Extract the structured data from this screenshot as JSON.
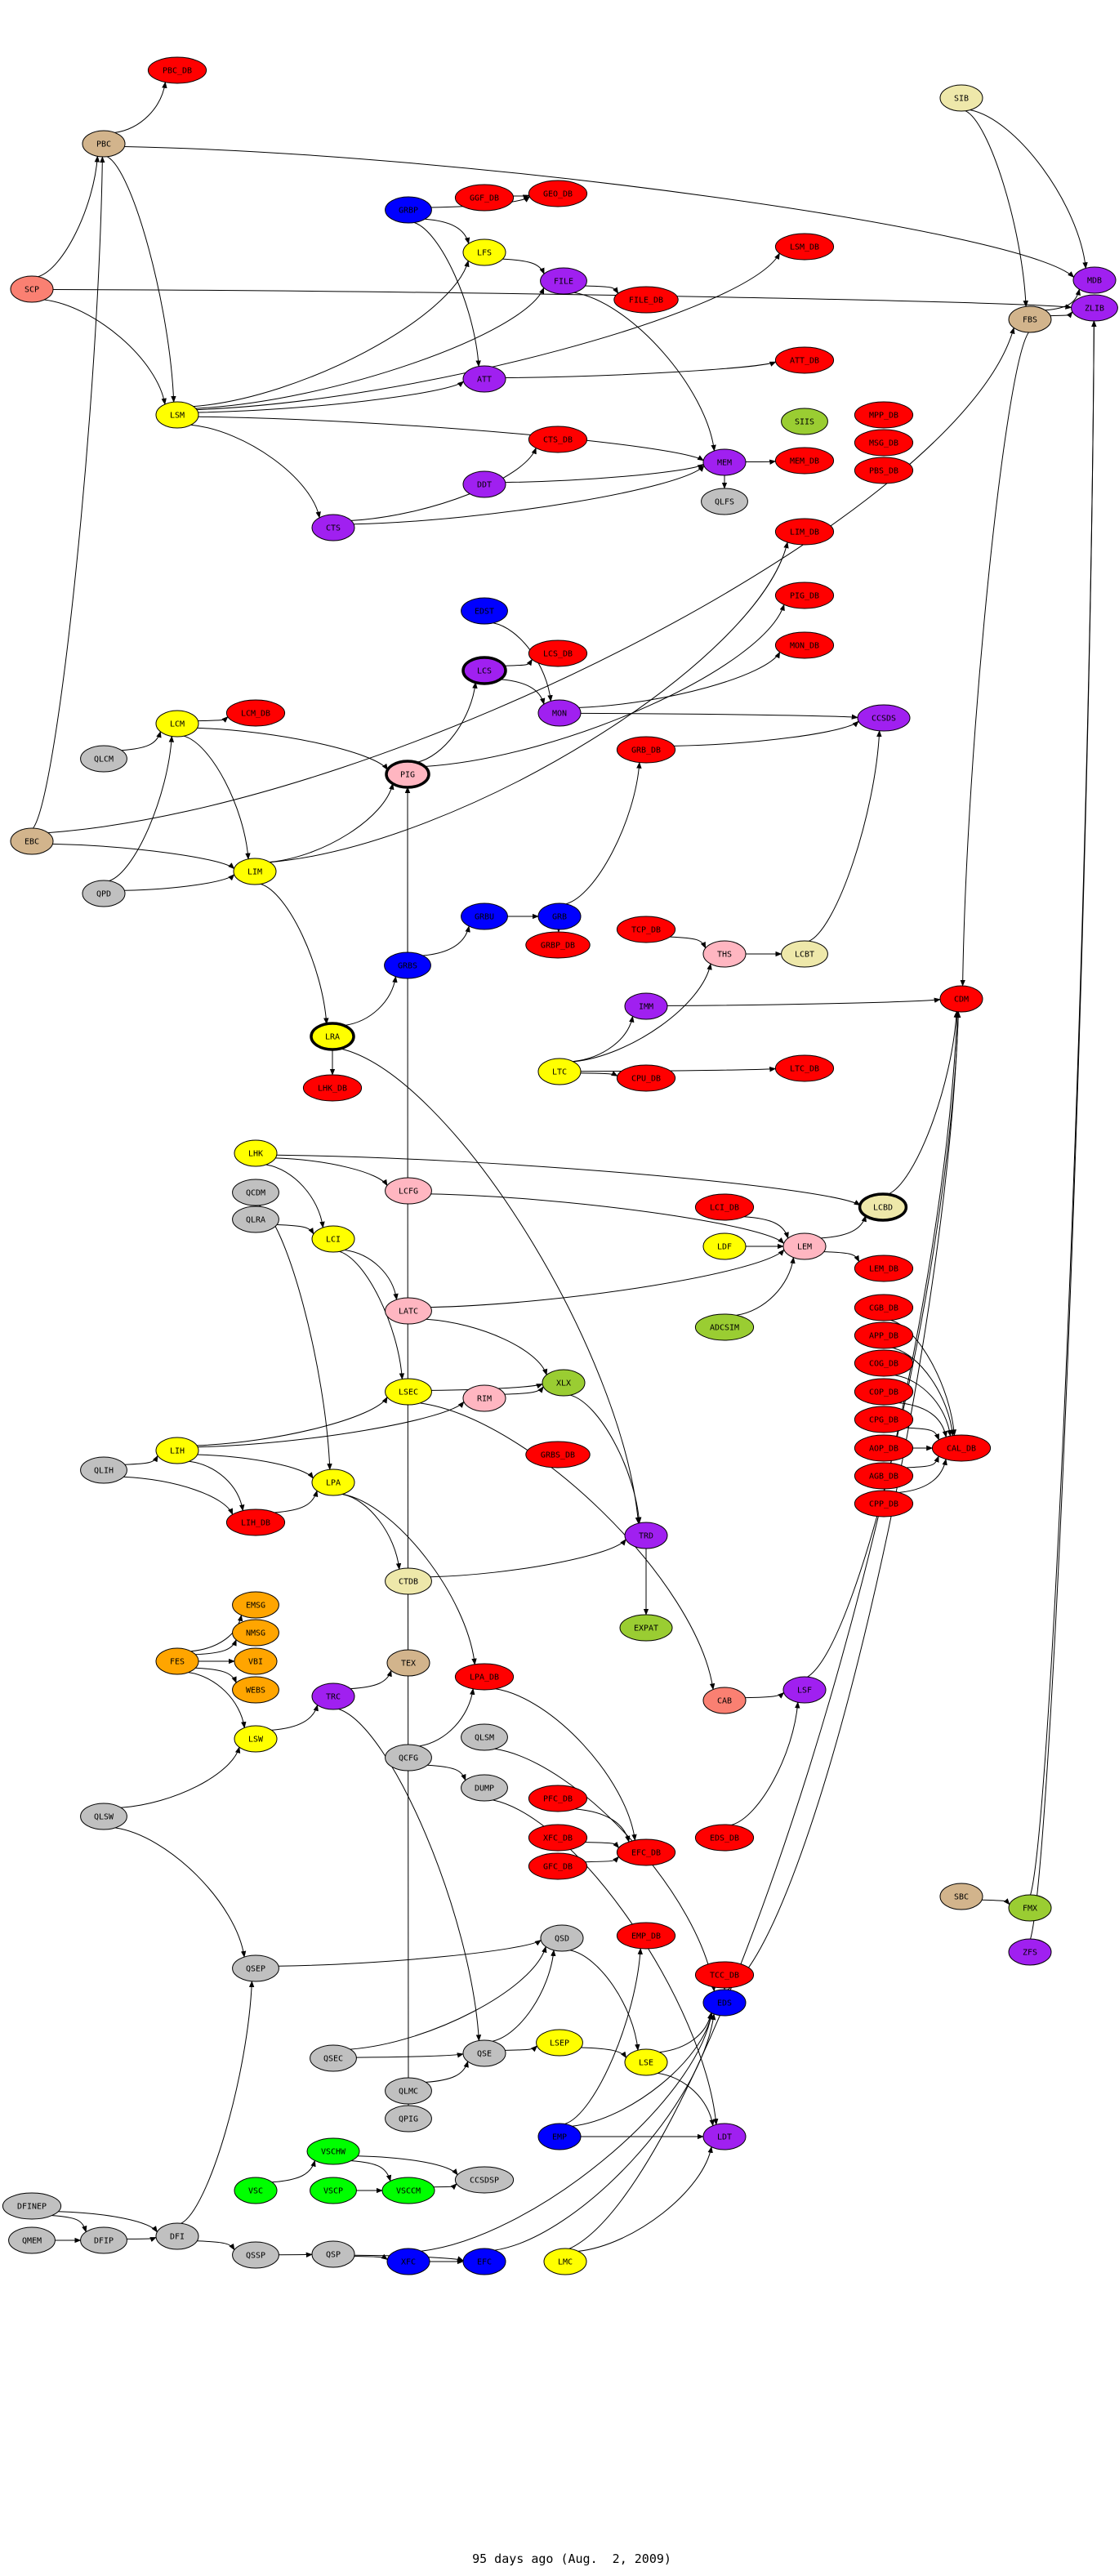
{
  "colors": {
    "red": "#ff0000",
    "yellow": "#ffff00",
    "purple": "#a020f0",
    "blue": "#0000ff",
    "gray": "#c0c0c0",
    "tan": "#d2b48c",
    "salmon": "#fa8072",
    "pink": "#ffb6c1",
    "goldenrod": "#eee8aa",
    "yellowgreen": "#9acd32",
    "orange": "#ffa500",
    "green": "#00ff00"
  },
  "nodes": [
    {
      "id": "PBC_DB",
      "label": "PBC_DB",
      "color": "red"
    },
    {
      "id": "PBC",
      "label": "PBC",
      "color": "tan"
    },
    {
      "id": "SCP",
      "label": "SCP",
      "color": "salmon"
    },
    {
      "id": "GRBP",
      "label": "GRBP",
      "color": "blue"
    },
    {
      "id": "GGF_DB",
      "label": "GGF_DB",
      "color": "red"
    },
    {
      "id": "GEO_DB",
      "label": "GEO_DB",
      "color": "red"
    },
    {
      "id": "LFS",
      "label": "LFS",
      "color": "yellow"
    },
    {
      "id": "FILE",
      "label": "FILE",
      "color": "purple"
    },
    {
      "id": "LSM",
      "label": "LSM",
      "color": "yellow"
    },
    {
      "id": "ATT",
      "label": "ATT",
      "color": "purple"
    },
    {
      "id": "CTS_DB",
      "label": "CTS_DB",
      "color": "red"
    },
    {
      "id": "DDT",
      "label": "DDT",
      "color": "purple"
    },
    {
      "id": "CTS",
      "label": "CTS",
      "color": "purple"
    },
    {
      "id": "SIB",
      "label": "SIB",
      "color": "goldenrod"
    },
    {
      "id": "LSM_DB",
      "label": "LSM_DB",
      "color": "red"
    },
    {
      "id": "MDB",
      "label": "MDB",
      "color": "purple"
    },
    {
      "id": "ZLIB",
      "label": "ZLIB",
      "color": "purple"
    },
    {
      "id": "FBS",
      "label": "FBS",
      "color": "tan"
    },
    {
      "id": "FILE_DB",
      "label": "FILE_DB",
      "color": "red"
    },
    {
      "id": "ATT_DB",
      "label": "ATT_DB",
      "color": "red"
    },
    {
      "id": "SIIS",
      "label": "SIIS",
      "color": "yellowgreen"
    },
    {
      "id": "MPP_DB",
      "label": "MPP_DB",
      "color": "red"
    },
    {
      "id": "MSG_DB",
      "label": "MSG_DB",
      "color": "red"
    },
    {
      "id": "PBS_DB",
      "label": "PBS_DB",
      "color": "red"
    },
    {
      "id": "MEM",
      "label": "MEM",
      "color": "purple"
    },
    {
      "id": "MEM_DB",
      "label": "MEM_DB",
      "color": "red"
    },
    {
      "id": "QLFS",
      "label": "QLFS",
      "color": "gray"
    },
    {
      "id": "LIM_DB",
      "label": "LIM_DB",
      "color": "red"
    },
    {
      "id": "EDST",
      "label": "EDST",
      "color": "blue"
    },
    {
      "id": "LCS",
      "label": "LCS",
      "color": "purple",
      "bold": true
    },
    {
      "id": "LCS_DB",
      "label": "LCS_DB",
      "color": "red"
    },
    {
      "id": "MON",
      "label": "MON",
      "color": "purple"
    },
    {
      "id": "LCM",
      "label": "LCM",
      "color": "yellow"
    },
    {
      "id": "LCM_DB",
      "label": "LCM_DB",
      "color": "red"
    },
    {
      "id": "QLCM",
      "label": "QLCM",
      "color": "gray"
    },
    {
      "id": "PIG",
      "label": "PIG",
      "color": "pink",
      "bold": true
    },
    {
      "id": "EBC",
      "label": "EBC",
      "color": "tan"
    },
    {
      "id": "LIM",
      "label": "LIM",
      "color": "yellow"
    },
    {
      "id": "QPD",
      "label": "QPD",
      "color": "gray"
    },
    {
      "id": "GRBU",
      "label": "GRBU",
      "color": "blue"
    },
    {
      "id": "GRB",
      "label": "GRB",
      "color": "blue"
    },
    {
      "id": "GRBP_DB",
      "label": "GRBP_DB",
      "color": "red"
    },
    {
      "id": "GRBS",
      "label": "GRBS",
      "color": "blue"
    },
    {
      "id": "LRA",
      "label": "LRA",
      "color": "yellow",
      "bold": true
    },
    {
      "id": "LHK_DB",
      "label": "LHK_DB",
      "color": "red"
    },
    {
      "id": "LTC",
      "label": "LTC",
      "color": "yellow"
    },
    {
      "id": "PIG_DB",
      "label": "PIG_DB",
      "color": "red"
    },
    {
      "id": "MON_DB",
      "label": "MON_DB",
      "color": "red"
    },
    {
      "id": "CCSDS",
      "label": "CCSDS",
      "color": "purple"
    },
    {
      "id": "GRB_DB",
      "label": "GRB_DB",
      "color": "red"
    },
    {
      "id": "TCP_DB",
      "label": "TCP_DB",
      "color": "red"
    },
    {
      "id": "THS",
      "label": "THS",
      "color": "pink"
    },
    {
      "id": "LCBT",
      "label": "LCBT",
      "color": "goldenrod"
    },
    {
      "id": "CDM",
      "label": "CDM",
      "color": "red"
    },
    {
      "id": "IMM",
      "label": "IMM",
      "color": "purple"
    },
    {
      "id": "LTC_DB",
      "label": "LTC_DB",
      "color": "red"
    },
    {
      "id": "CPU_DB",
      "label": "CPU_DB",
      "color": "red"
    },
    {
      "id": "LHK",
      "label": "LHK",
      "color": "yellow"
    },
    {
      "id": "QCDM",
      "label": "QCDM",
      "color": "gray"
    },
    {
      "id": "QLRA",
      "label": "QLRA",
      "color": "gray"
    },
    {
      "id": "LCFG",
      "label": "LCFG",
      "color": "pink"
    },
    {
      "id": "LCI",
      "label": "LCI",
      "color": "yellow"
    },
    {
      "id": "LATC",
      "label": "LATC",
      "color": "pink"
    },
    {
      "id": "LSEC",
      "label": "LSEC",
      "color": "yellow"
    },
    {
      "id": "RIM",
      "label": "RIM",
      "color": "pink"
    },
    {
      "id": "XLX",
      "label": "XLX",
      "color": "yellowgreen"
    },
    {
      "id": "LIH",
      "label": "LIH",
      "color": "yellow"
    },
    {
      "id": "QLIH",
      "label": "QLIH",
      "color": "gray"
    },
    {
      "id": "LPA",
      "label": "LPA",
      "color": "yellow"
    },
    {
      "id": "GRBS_DB",
      "label": "GRBS_DB",
      "color": "red"
    },
    {
      "id": "LIH_DB",
      "label": "LIH_DB",
      "color": "red"
    },
    {
      "id": "CTDB",
      "label": "CTDB",
      "color": "goldenrod"
    },
    {
      "id": "EMSG",
      "label": "EMSG",
      "color": "orange"
    },
    {
      "id": "NMSG",
      "label": "NMSG",
      "color": "orange"
    },
    {
      "id": "FES",
      "label": "FES",
      "color": "orange"
    },
    {
      "id": "VBI",
      "label": "VBI",
      "color": "orange"
    },
    {
      "id": "WEBS",
      "label": "WEBS",
      "color": "orange"
    },
    {
      "id": "TEX",
      "label": "TEX",
      "color": "tan"
    },
    {
      "id": "LPA_DB",
      "label": "LPA_DB",
      "color": "red"
    },
    {
      "id": "LCI_DB",
      "label": "LCI_DB",
      "color": "red"
    },
    {
      "id": "LDF",
      "label": "LDF",
      "color": "yellow"
    },
    {
      "id": "LEM",
      "label": "LEM",
      "color": "pink"
    },
    {
      "id": "LCBD",
      "label": "LCBD",
      "color": "goldenrod",
      "bold": true
    },
    {
      "id": "LEM_DB",
      "label": "LEM_DB",
      "color": "red"
    },
    {
      "id": "CGB_DB",
      "label": "CGB_DB",
      "color": "red"
    },
    {
      "id": "APP_DB",
      "label": "APP_DB",
      "color": "red"
    },
    {
      "id": "COG_DB",
      "label": "COG_DB",
      "color": "red"
    },
    {
      "id": "COP_DB",
      "label": "COP_DB",
      "color": "red"
    },
    {
      "id": "CPG_DB",
      "label": "CPG_DB",
      "color": "red"
    },
    {
      "id": "AOP_DB",
      "label": "AOP_DB",
      "color": "red"
    },
    {
      "id": "AGB_DB",
      "label": "AGB_DB",
      "color": "red"
    },
    {
      "id": "CPP_DB",
      "label": "CPP_DB",
      "color": "red"
    },
    {
      "id": "CAL_DB",
      "label": "CAL_DB",
      "color": "red"
    },
    {
      "id": "ADCSIM",
      "label": "ADCSIM",
      "color": "yellowgreen"
    },
    {
      "id": "TRD",
      "label": "TRD",
      "color": "purple"
    },
    {
      "id": "EXPAT",
      "label": "EXPAT",
      "color": "yellowgreen"
    },
    {
      "id": "TRC",
      "label": "TRC",
      "color": "purple"
    },
    {
      "id": "LSW",
      "label": "LSW",
      "color": "yellow"
    },
    {
      "id": "QLSM",
      "label": "QLSM",
      "color": "gray"
    },
    {
      "id": "QCFG",
      "label": "QCFG",
      "color": "gray"
    },
    {
      "id": "DUMP",
      "label": "DUMP",
      "color": "gray"
    },
    {
      "id": "PFC_DB",
      "label": "PFC_DB",
      "color": "red"
    },
    {
      "id": "XFC_DB",
      "label": "XFC_DB",
      "color": "red"
    },
    {
      "id": "GFC_DB",
      "label": "GFC_DB",
      "color": "red"
    },
    {
      "id": "QLSW",
      "label": "QLSW",
      "color": "gray"
    },
    {
      "id": "QSD",
      "label": "QSD",
      "color": "gray"
    },
    {
      "id": "QSEP",
      "label": "QSEP",
      "color": "gray"
    },
    {
      "id": "LSEP",
      "label": "LSEP",
      "color": "yellow"
    },
    {
      "id": "QSE",
      "label": "QSE",
      "color": "gray"
    },
    {
      "id": "QSEC",
      "label": "QSEC",
      "color": "gray"
    },
    {
      "id": "QLMC",
      "label": "QLMC",
      "color": "gray"
    },
    {
      "id": "QPIG",
      "label": "QPIG",
      "color": "gray"
    },
    {
      "id": "EMP",
      "label": "EMP",
      "color": "blue"
    },
    {
      "id": "VSCHW",
      "label": "VSCHW",
      "color": "green"
    },
    {
      "id": "CCSDSP",
      "label": "CCSDSP",
      "color": "gray"
    },
    {
      "id": "VSC",
      "label": "VSC",
      "color": "green"
    },
    {
      "id": "VSCP",
      "label": "VSCP",
      "color": "green"
    },
    {
      "id": "VSCCM",
      "label": "VSCCM",
      "color": "green"
    },
    {
      "id": "DFINEP",
      "label": "DFINEP",
      "color": "gray"
    },
    {
      "id": "LSF",
      "label": "LSF",
      "color": "purple"
    },
    {
      "id": "CAB",
      "label": "CAB",
      "color": "salmon"
    },
    {
      "id": "EFC_DB",
      "label": "EFC_DB",
      "color": "red"
    },
    {
      "id": "EDS_DB",
      "label": "EDS_DB",
      "color": "red"
    },
    {
      "id": "EMP_DB",
      "label": "EMP_DB",
      "color": "red"
    },
    {
      "id": "TCC_DB",
      "label": "TCC_DB",
      "color": "red"
    },
    {
      "id": "EDS",
      "label": "EDS",
      "color": "blue"
    },
    {
      "id": "LSE",
      "label": "LSE",
      "color": "yellow"
    },
    {
      "id": "LDT",
      "label": "LDT",
      "color": "purple"
    },
    {
      "id": "SBC",
      "label": "SBC",
      "color": "tan"
    },
    {
      "id": "FMX",
      "label": "FMX",
      "color": "yellowgreen"
    },
    {
      "id": "ZFS",
      "label": "ZFS",
      "color": "purple"
    },
    {
      "id": "QMEM",
      "label": "QMEM",
      "color": "gray"
    },
    {
      "id": "DFIP",
      "label": "DFIP",
      "color": "gray"
    },
    {
      "id": "DFI",
      "label": "DFI",
      "color": "gray"
    },
    {
      "id": "QSSP",
      "label": "QSSP",
      "color": "gray"
    },
    {
      "id": "QSP",
      "label": "QSP",
      "color": "gray"
    },
    {
      "id": "XFC",
      "label": "XFC",
      "color": "blue"
    },
    {
      "id": "EFC",
      "label": "EFC",
      "color": "blue"
    },
    {
      "id": "LMC",
      "label": "LMC",
      "color": "yellow"
    }
  ],
  "edges": [
    [
      "PBC",
      "PBC_DB"
    ],
    [
      "SCP",
      "PBC"
    ],
    [
      "SCP",
      "LSM"
    ],
    [
      "PBC",
      "LSM"
    ],
    [
      "GGF_DB",
      "GEO_DB"
    ],
    [
      "GRBP",
      "GEO_DB"
    ],
    [
      "GRBP",
      "ATT"
    ],
    [
      "LFS",
      "FILE"
    ],
    [
      "LSM",
      "LFS"
    ],
    [
      "LSM",
      "ATT"
    ],
    [
      "LSM",
      "CTS"
    ],
    [
      "FILE",
      "FILE_DB"
    ],
    [
      "CTS",
      "CTS_DB"
    ],
    [
      "LSM",
      "LSM_DB"
    ],
    [
      "SIB",
      "FBS"
    ],
    [
      "SIB",
      "MDB"
    ],
    [
      "FBS",
      "MDB"
    ],
    [
      "FBS",
      "ZLIB"
    ],
    [
      "MEM",
      "MEM_DB"
    ],
    [
      "MEM",
      "QLFS"
    ],
    [
      "LIM",
      "LIM_DB"
    ],
    [
      "ATT",
      "ATT_DB"
    ],
    [
      "LCM",
      "LCM_DB"
    ],
    [
      "QLCM",
      "LCM"
    ],
    [
      "LCM",
      "LIM"
    ],
    [
      "QPD",
      "LIM"
    ],
    [
      "EBC",
      "LIM"
    ],
    [
      "QPD",
      "LCM"
    ],
    [
      "LIM",
      "PIG"
    ],
    [
      "PIG",
      "LCS"
    ],
    [
      "LCS",
      "LCS_DB"
    ],
    [
      "LCS",
      "MON"
    ],
    [
      "EDST",
      "MON"
    ],
    [
      "GRBU",
      "GRB"
    ],
    [
      "GRBS",
      "GRBU"
    ],
    [
      "GRB",
      "GRBP_DB"
    ],
    [
      "GRBS",
      "PIG"
    ],
    [
      "LIM",
      "LRA"
    ],
    [
      "LRA",
      "LHK_DB"
    ],
    [
      "LTC",
      "IMM"
    ],
    [
      "LTC",
      "CPU_DB"
    ],
    [
      "LTC",
      "LTC_DB"
    ],
    [
      "PIG",
      "PIG_DB"
    ],
    [
      "MON",
      "MON_DB"
    ],
    [
      "MON",
      "CCSDS"
    ],
    [
      "GRB",
      "GRB_DB"
    ],
    [
      "THS",
      "LCBT"
    ],
    [
      "LCBT",
      "CCSDS"
    ],
    [
      "GRB_DB",
      "CCSDS"
    ],
    [
      "LCBD",
      "CDM"
    ],
    [
      "FBS",
      "CDM"
    ],
    [
      "LHK",
      "LCFG"
    ],
    [
      "LCI",
      "LATC"
    ],
    [
      "LCI",
      "LSEC"
    ],
    [
      "QLRA",
      "LCI"
    ],
    [
      "LHK",
      "LCI"
    ],
    [
      "LATC",
      "XLX"
    ],
    [
      "RIM",
      "XLX"
    ],
    [
      "LSEC",
      "XLX"
    ],
    [
      "LIH",
      "LPA"
    ],
    [
      "QLIH",
      "LIH"
    ],
    [
      "QLIH",
      "LIH_DB"
    ],
    [
      "LIH",
      "LIH_DB"
    ],
    [
      "LIH_DB",
      "LPA"
    ],
    [
      "LPA",
      "CTDB"
    ],
    [
      "LPA",
      "LPA_DB"
    ],
    [
      "FES",
      "EMSG"
    ],
    [
      "FES",
      "NMSG"
    ],
    [
      "FES",
      "VBI"
    ],
    [
      "FES",
      "WEBS"
    ],
    [
      "FES",
      "LSW"
    ],
    [
      "TRC",
      "TEX"
    ],
    [
      "LSW",
      "TRC"
    ],
    [
      "QLSW",
      "LSW"
    ],
    [
      "LCI_DB",
      "LEM"
    ],
    [
      "LDF",
      "LEM"
    ],
    [
      "LEM",
      "LCBD"
    ],
    [
      "LEM",
      "LEM_DB"
    ],
    [
      "ADCSIM",
      "LEM"
    ],
    [
      "CGB_DB",
      "CAL_DB"
    ],
    [
      "APP_DB",
      "CAL_DB"
    ],
    [
      "COG_DB",
      "CAL_DB"
    ],
    [
      "COP_DB",
      "CAL_DB"
    ],
    [
      "CPG_DB",
      "CAL_DB"
    ],
    [
      "AOP_DB",
      "CAL_DB"
    ],
    [
      "AGB_DB",
      "CAL_DB"
    ],
    [
      "CPP_DB",
      "CAL_DB"
    ],
    [
      "XLX",
      "TRD"
    ],
    [
      "TRD",
      "EXPAT"
    ],
    [
      "QCFG",
      "DUMP"
    ],
    [
      "PFC_DB",
      "EFC_DB"
    ],
    [
      "XFC_DB",
      "EFC_DB"
    ],
    [
      "GFC_DB",
      "EFC_DB"
    ],
    [
      "EMP",
      "EMP_DB"
    ],
    [
      "TCC_DB",
      "EDS"
    ],
    [
      "LSE",
      "EDS"
    ],
    [
      "LSE",
      "LDT"
    ],
    [
      "LSEP",
      "LSE"
    ],
    [
      "QSD",
      "LSE"
    ],
    [
      "EMP",
      "LDT"
    ],
    [
      "QSEC",
      "QSE"
    ],
    [
      "QLMC",
      "QSE"
    ],
    [
      "QSE",
      "QSD"
    ],
    [
      "QSEP",
      "QSD"
    ],
    [
      "VSC",
      "VSCHW"
    ],
    [
      "VSCHW",
      "VSCCM"
    ],
    [
      "VSCP",
      "VSCCM"
    ],
    [
      "VSCCM",
      "CCSDSP"
    ],
    [
      "VSCHW",
      "CCSDSP"
    ],
    [
      "DFINEP",
      "DFIP"
    ],
    [
      "DFINEP",
      "DFI"
    ],
    [
      "QMEM",
      "DFIP"
    ],
    [
      "DFIP",
      "DFI"
    ],
    [
      "DFI",
      "QSSP"
    ],
    [
      "QSSP",
      "QSP"
    ],
    [
      "QSP",
      "XFC"
    ],
    [
      "XFC",
      "EFC"
    ],
    [
      "SBC",
      "FMX"
    ],
    [
      "FMX",
      "ZLIB"
    ],
    [
      "ZFS",
      "ZLIB"
    ],
    [
      "QPIG",
      "PIG"
    ],
    [
      "DFI",
      "QSEP"
    ],
    [
      "QLSW",
      "QSEP"
    ],
    [
      "EDS",
      "CDM"
    ],
    [
      "LSF",
      "CDM"
    ],
    [
      "CAB",
      "LSF"
    ],
    [
      "EDS_DB",
      "LSF"
    ],
    [
      "LTC",
      "THS"
    ],
    [
      "TCP_DB",
      "THS"
    ],
    [
      "IMM",
      "CDM"
    ],
    [
      "LCM",
      "PIG"
    ],
    [
      "LCFG",
      "LEM"
    ],
    [
      "LATC",
      "LEM"
    ],
    [
      "QCDM",
      "LPA"
    ],
    [
      "LHK",
      "LCBD"
    ],
    [
      "LSM",
      "MEM"
    ],
    [
      "FILE",
      "MEM"
    ],
    [
      "QSEC",
      "QSD"
    ],
    [
      "QSP",
      "EFC"
    ],
    [
      "XFC",
      "EDS"
    ],
    [
      "EFC",
      "EDS"
    ],
    [
      "LMC",
      "LDT"
    ],
    [
      "LMC",
      "CDM"
    ],
    [
      "EMP",
      "EDS"
    ],
    [
      "QSE",
      "LSEP"
    ],
    [
      "CTS",
      "MEM"
    ],
    [
      "DDT",
      "MEM"
    ],
    [
      "GRBP",
      "LFS"
    ],
    [
      "LSM",
      "FILE"
    ],
    [
      "SCP",
      "ZLIB"
    ],
    [
      "PBC",
      "MDB"
    ],
    [
      "EBC",
      "PBC"
    ],
    [
      "EBC",
      "FBS"
    ],
    [
      "QLSM",
      "EDS"
    ],
    [
      "DUMP",
      "LDT"
    ],
    [
      "QCFG",
      "LPA_DB"
    ],
    [
      "LPA_DB",
      "EFC_DB"
    ],
    [
      "TRC",
      "QSE"
    ],
    [
      "LRA",
      "GRBS"
    ],
    [
      "LRA",
      "TRD"
    ],
    [
      "LIH",
      "RIM"
    ],
    [
      "LIH",
      "LSEC"
    ],
    [
      "CTDB",
      "TRD"
    ],
    [
      "LSEC",
      "CAB"
    ]
  ],
  "footer": "95 days ago (Aug.  2, 2009)"
}
